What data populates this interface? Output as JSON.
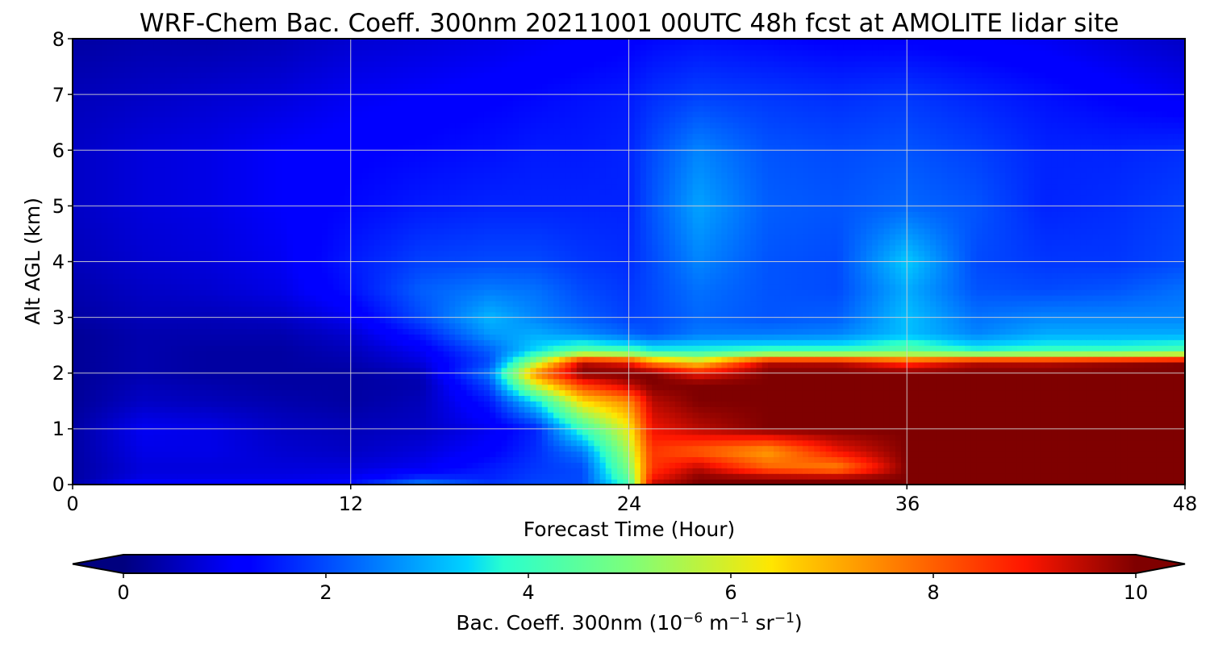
{
  "chart_data": {
    "type": "heatmap",
    "title": "WRF-Chem Bac. Coeff. 300nm  20211001 00UTC 48h fcst at AMOLITE lidar site",
    "xlabel": "Forecast Time (Hour)",
    "ylabel": "Alt AGL (km)",
    "xlim": [
      0,
      48
    ],
    "ylim": [
      0,
      8
    ],
    "x_ticks": [
      "0",
      "12",
      "24",
      "36",
      "48"
    ],
    "y_ticks": [
      "0",
      "1",
      "2",
      "3",
      "4",
      "5",
      "6",
      "7",
      "8"
    ],
    "grid": true,
    "colormap": "jet",
    "colorbar": {
      "orientation": "horizontal",
      "placement": "bottom",
      "extend": "both",
      "range": [
        0,
        10
      ],
      "ticks": [
        "0",
        "2",
        "4",
        "6",
        "8",
        "10"
      ],
      "label_main": "Bac. Coeff. 300nm  (10",
      "label_exp1": "−6",
      "label_mid": " m",
      "label_exp2": "−1",
      "label_mid2": " sr",
      "label_exp3": "−1",
      "label_end": ")"
    },
    "x": [
      0,
      3,
      6,
      9,
      12,
      15,
      18,
      20,
      22,
      24,
      25,
      27,
      30,
      33,
      36,
      39,
      42,
      45,
      48
    ],
    "y": [
      0,
      0.1,
      0.3,
      0.6,
      1.0,
      1.5,
      1.8,
      2.0,
      2.2,
      2.4,
      2.7,
      3.0,
      3.5,
      4.0,
      5.0,
      6.0,
      7.0,
      8.0
    ],
    "z": [
      [
        0.4,
        1.5,
        1.5,
        1.5,
        1.6,
        2.8,
        1.9,
        2.0,
        2.0,
        4.0,
        9.5,
        10.0,
        10.0,
        10.0,
        10.0,
        10.0,
        10.0,
        10.0,
        10.0
      ],
      [
        0.3,
        0.9,
        0.9,
        0.9,
        1.0,
        1.8,
        1.6,
        1.9,
        2.0,
        4.5,
        9.0,
        10.0,
        10.0,
        10.0,
        10.0,
        10.0,
        10.0,
        10.0,
        10.0
      ],
      [
        0.3,
        0.8,
        0.8,
        0.8,
        0.8,
        1.0,
        1.5,
        1.8,
        2.0,
        5.0,
        8.5,
        9.5,
        8.0,
        7.5,
        10.0,
        10.0,
        10.0,
        10.0,
        10.0
      ],
      [
        0.3,
        0.9,
        0.9,
        0.7,
        0.6,
        0.8,
        1.2,
        1.7,
        2.5,
        5.5,
        8.5,
        8.0,
        7.2,
        9.0,
        10.0,
        10.0,
        10.0,
        10.0,
        10.0
      ],
      [
        0.3,
        1.0,
        0.9,
        0.6,
        0.5,
        0.6,
        1.0,
        1.6,
        4.0,
        6.2,
        9.0,
        9.5,
        10.0,
        10.0,
        10.0,
        10.0,
        10.0,
        10.0,
        10.0
      ],
      [
        0.2,
        0.6,
        0.5,
        0.4,
        0.3,
        0.5,
        1.5,
        3.5,
        6.5,
        7.5,
        9.5,
        10.0,
        10.0,
        10.0,
        10.0,
        10.0,
        10.0,
        10.0,
        10.0
      ],
      [
        0.2,
        0.5,
        0.4,
        0.3,
        0.3,
        0.4,
        2.0,
        6.0,
        8.5,
        9.5,
        10.0,
        10.0,
        10.0,
        10.0,
        10.0,
        10.0,
        10.0,
        10.0,
        10.0
      ],
      [
        0.2,
        0.4,
        0.3,
        0.3,
        0.3,
        0.5,
        2.5,
        7.5,
        10.0,
        10.0,
        10.0,
        9.0,
        10.0,
        10.0,
        10.0,
        10.0,
        10.0,
        10.0,
        10.0
      ],
      [
        0.2,
        0.4,
        0.3,
        0.3,
        0.4,
        0.8,
        2.0,
        5.5,
        9.5,
        9.0,
        7.5,
        6.5,
        9.5,
        9.5,
        8.5,
        9.5,
        9.5,
        9.8,
        10.0
      ],
      [
        0.2,
        0.4,
        0.3,
        0.3,
        0.5,
        1.0,
        2.2,
        3.5,
        4.5,
        4.2,
        3.8,
        3.8,
        4.0,
        4.0,
        4.5,
        3.8,
        4.0,
        4.0,
        4.3
      ],
      [
        0.2,
        0.4,
        0.4,
        0.4,
        0.7,
        1.5,
        2.8,
        3.0,
        2.7,
        2.3,
        2.1,
        2.5,
        2.5,
        2.6,
        3.2,
        2.6,
        3.0,
        3.0,
        3.0
      ],
      [
        0.3,
        0.5,
        0.5,
        0.6,
        1.0,
        2.0,
        3.1,
        2.6,
        2.2,
        1.9,
        2.0,
        2.3,
        2.1,
        2.2,
        3.2,
        2.4,
        2.6,
        2.6,
        2.6
      ],
      [
        0.4,
        0.6,
        0.7,
        0.9,
        1.4,
        2.2,
        2.5,
        2.4,
        2.0,
        1.8,
        2.0,
        2.4,
        2.1,
        2.0,
        3.0,
        2.1,
        2.0,
        2.1,
        2.4
      ],
      [
        0.5,
        0.7,
        0.8,
        1.0,
        1.5,
        1.9,
        2.0,
        2.0,
        1.8,
        1.7,
        2.0,
        2.6,
        2.1,
        2.0,
        3.3,
        2.0,
        1.8,
        1.8,
        2.0
      ],
      [
        0.6,
        0.8,
        0.9,
        1.1,
        1.3,
        1.5,
        1.6,
        1.6,
        1.6,
        1.6,
        2.1,
        2.9,
        2.2,
        2.1,
        2.3,
        2.1,
        1.6,
        1.7,
        1.9
      ],
      [
        0.6,
        0.8,
        0.9,
        1.1,
        1.2,
        1.3,
        1.4,
        1.5,
        1.5,
        1.6,
        2.0,
        2.6,
        2.1,
        2.0,
        2.1,
        1.9,
        1.6,
        1.6,
        1.7
      ],
      [
        0.5,
        0.6,
        0.7,
        0.8,
        1.0,
        1.1,
        1.2,
        1.3,
        1.4,
        1.5,
        1.7,
        1.9,
        1.8,
        1.7,
        1.8,
        1.6,
        1.4,
        1.2,
        1.0
      ],
      [
        0.3,
        0.4,
        0.4,
        0.5,
        0.7,
        0.8,
        0.9,
        1.0,
        1.1,
        1.2,
        1.3,
        1.4,
        1.3,
        1.2,
        1.2,
        1.1,
        1.0,
        0.8,
        0.6
      ]
    ]
  }
}
